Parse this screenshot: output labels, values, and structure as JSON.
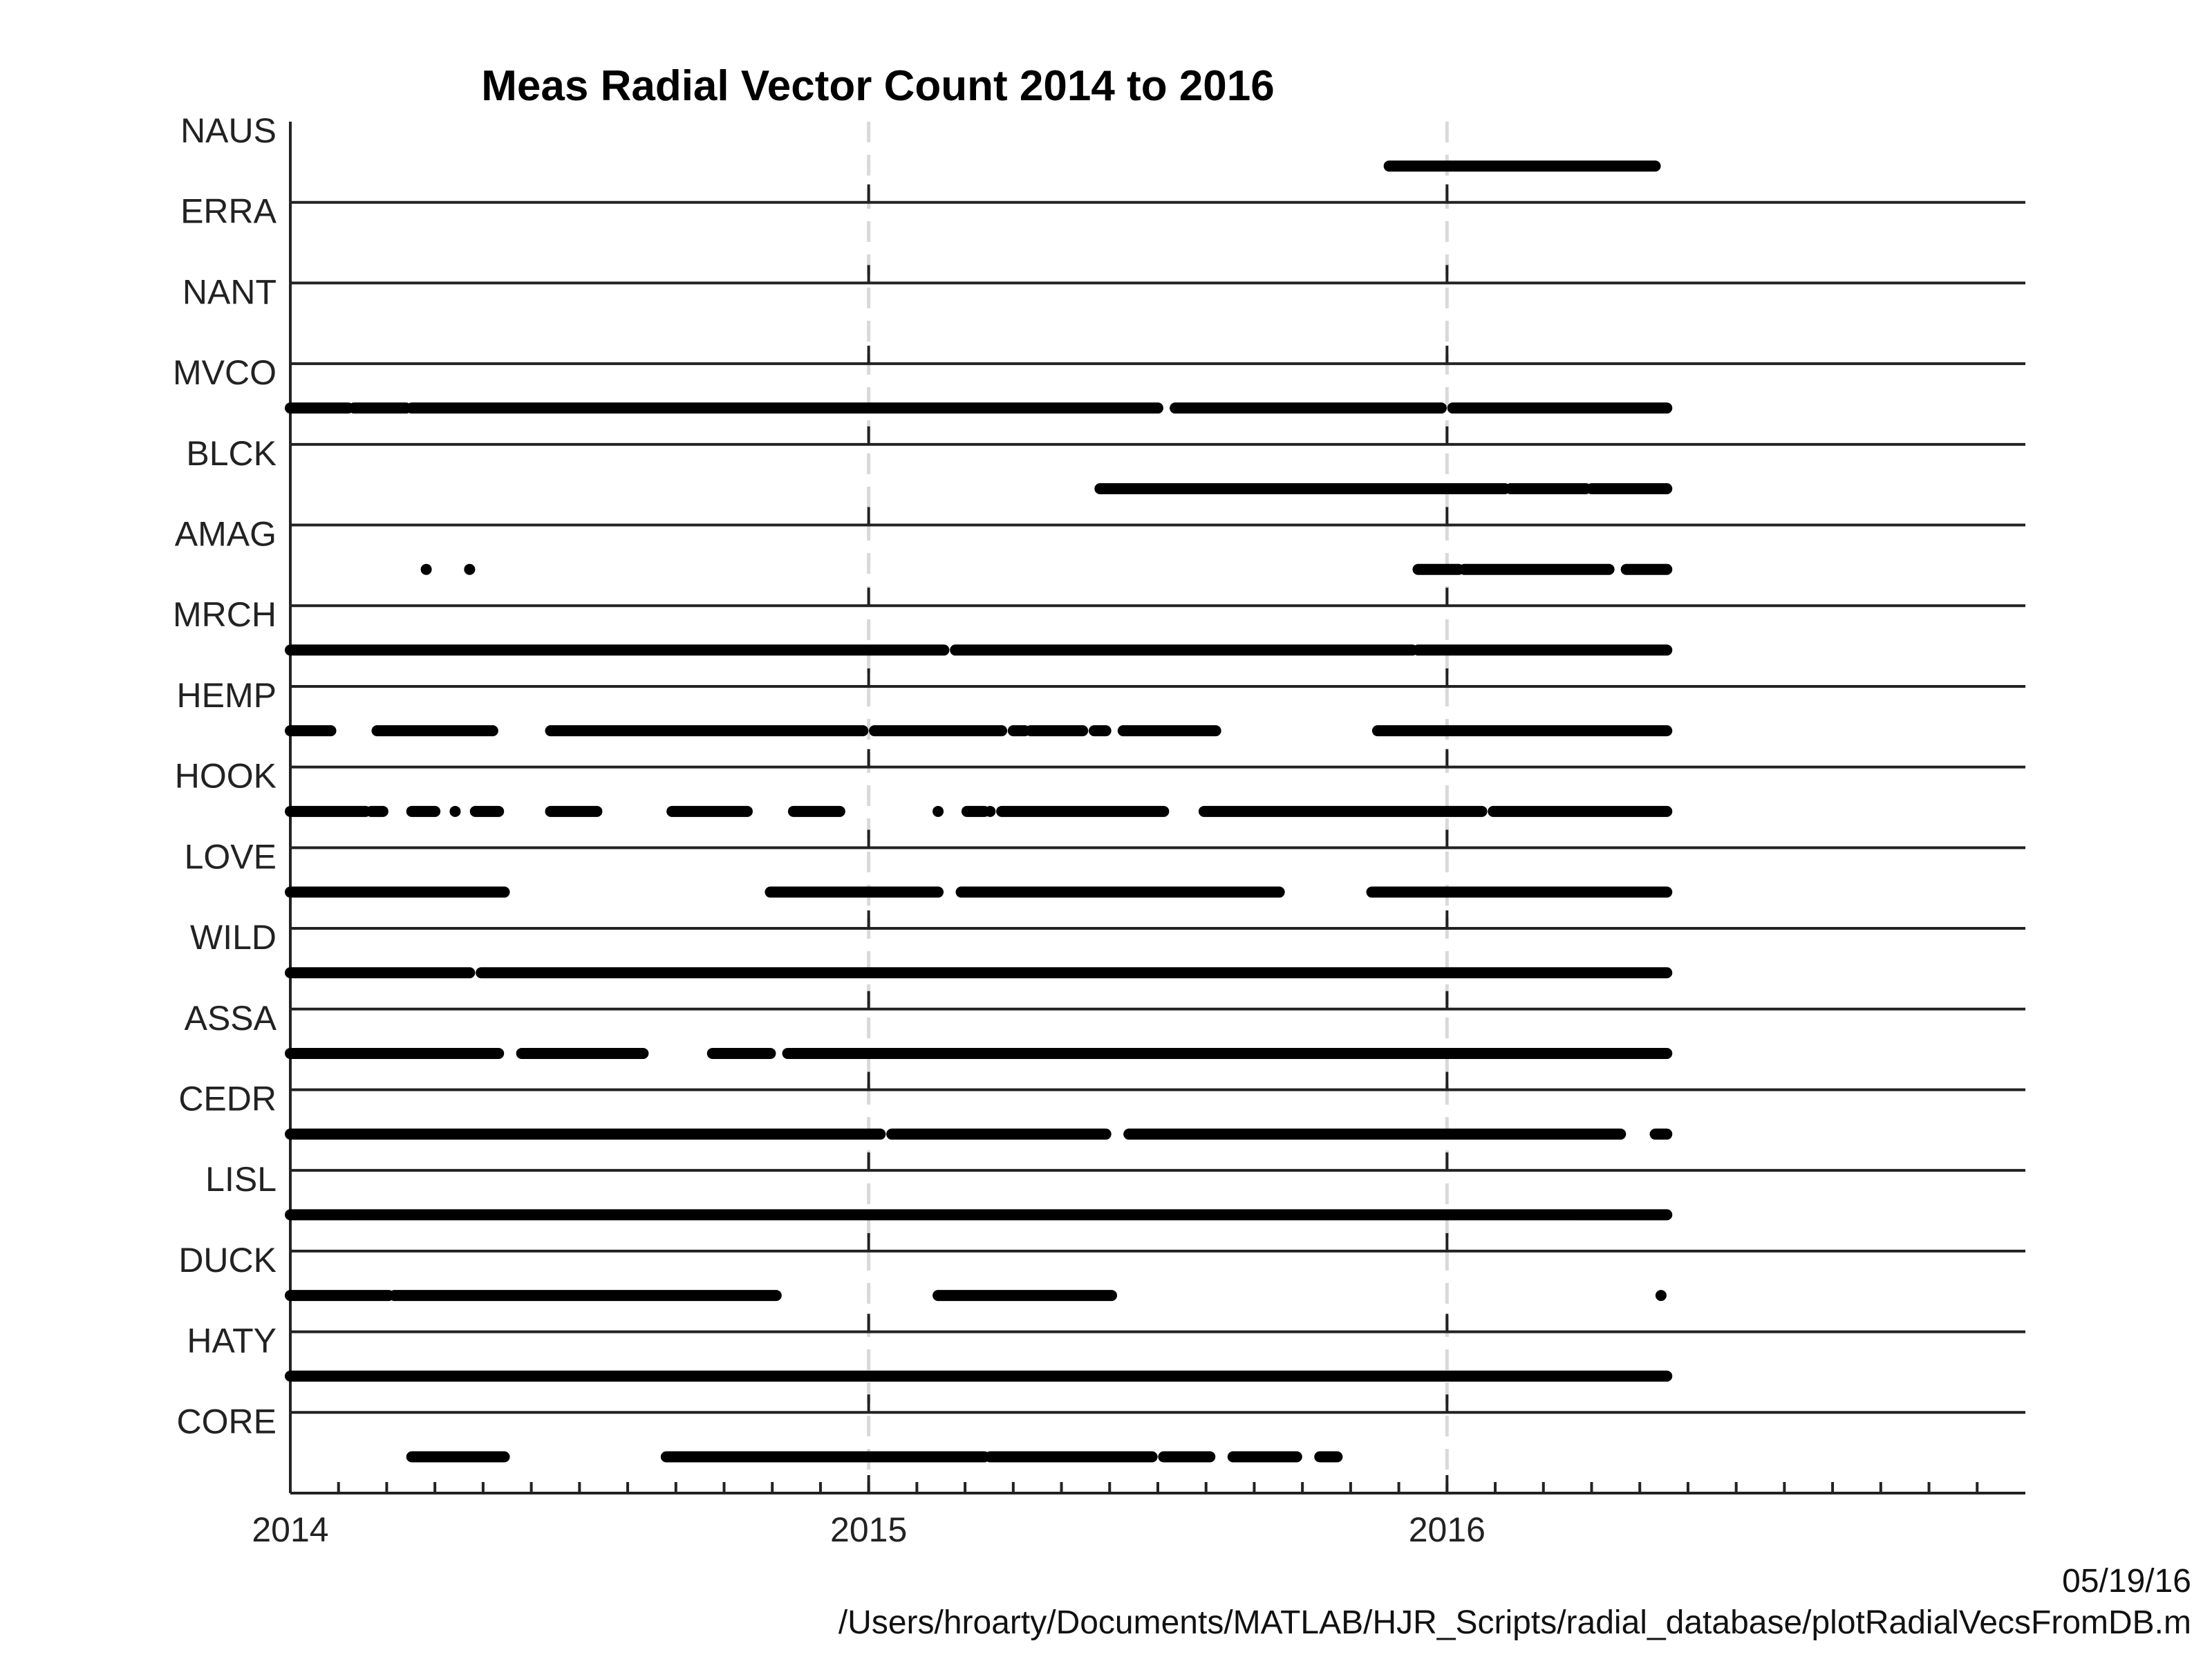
{
  "chart_data": {
    "type": "timeline",
    "title": "Meas Radial Vector Count 2014 to  2016",
    "xlim": [
      2014.0,
      2017.0
    ],
    "x_ticks": [
      2014,
      2015,
      2016
    ],
    "x_tick_labels": [
      "2014",
      "2015",
      "2016"
    ],
    "grid": "vertical dashed lines at year ticks",
    "series": [
      {
        "name": "NAUS",
        "segments": [
          [
            2015.9,
            2016.36
          ]
        ]
      },
      {
        "name": "ERRA",
        "segments": []
      },
      {
        "name": "NANT",
        "segments": []
      },
      {
        "name": "MVCO",
        "segments": [
          [
            2014.0,
            2014.1
          ],
          [
            2014.11,
            2014.2
          ],
          [
            2014.21,
            2015.5
          ],
          [
            2015.53,
            2015.99
          ],
          [
            2016.01,
            2016.38
          ]
        ]
      },
      {
        "name": "BLCK",
        "segments": [
          [
            2015.4,
            2016.1
          ],
          [
            2016.11,
            2016.24
          ],
          [
            2016.25,
            2016.38
          ]
        ]
      },
      {
        "name": "AMAG",
        "segments": [
          [
            2014.235,
            2014.235
          ],
          [
            2014.31,
            2014.31
          ],
          [
            2015.95,
            2016.02
          ],
          [
            2016.03,
            2016.28
          ],
          [
            2016.31,
            2016.38
          ]
        ]
      },
      {
        "name": "MRCH",
        "segments": [
          [
            2014.0,
            2015.13
          ],
          [
            2015.15,
            2015.94
          ],
          [
            2015.95,
            2016.38
          ]
        ]
      },
      {
        "name": "HEMP",
        "segments": [
          [
            2014.0,
            2014.07
          ],
          [
            2014.15,
            2014.35
          ],
          [
            2014.45,
            2014.99
          ],
          [
            2015.01,
            2015.23
          ],
          [
            2015.25,
            2015.27
          ],
          [
            2015.28,
            2015.37
          ],
          [
            2015.39,
            2015.41
          ],
          [
            2015.44,
            2015.6
          ],
          [
            2015.88,
            2016.38
          ]
        ]
      },
      {
        "name": "HOOK",
        "segments": [
          [
            2014.0,
            2014.13
          ],
          [
            2014.14,
            2014.16
          ],
          [
            2014.21,
            2014.25
          ],
          [
            2014.285,
            2014.285
          ],
          [
            2014.32,
            2014.36
          ],
          [
            2014.45,
            2014.53
          ],
          [
            2014.66,
            2014.79
          ],
          [
            2014.87,
            2014.95
          ],
          [
            2015.12,
            2015.12
          ],
          [
            2015.17,
            2015.2
          ],
          [
            2015.21,
            2015.21
          ],
          [
            2015.23,
            2015.51
          ],
          [
            2015.58,
            2016.06
          ],
          [
            2016.08,
            2016.38
          ]
        ]
      },
      {
        "name": "LOVE",
        "segments": [
          [
            2014.0,
            2014.37
          ],
          [
            2014.83,
            2015.12
          ],
          [
            2015.16,
            2015.71
          ],
          [
            2015.87,
            2016.38
          ]
        ]
      },
      {
        "name": "WILD",
        "segments": [
          [
            2014.0,
            2014.31
          ],
          [
            2014.33,
            2016.38
          ]
        ]
      },
      {
        "name": "ASSA",
        "segments": [
          [
            2014.0,
            2014.36
          ],
          [
            2014.4,
            2014.61
          ],
          [
            2014.73,
            2014.83
          ],
          [
            2014.86,
            2016.38
          ]
        ]
      },
      {
        "name": "CEDR",
        "segments": [
          [
            2014.0,
            2015.02
          ],
          [
            2015.04,
            2015.41
          ],
          [
            2015.45,
            2016.3
          ],
          [
            2016.36,
            2016.38
          ]
        ]
      },
      {
        "name": "LISL",
        "segments": [
          [
            2014.0,
            2016.38
          ]
        ]
      },
      {
        "name": "DUCK",
        "segments": [
          [
            2014.0,
            2014.17
          ],
          [
            2014.18,
            2014.84
          ],
          [
            2015.12,
            2015.42
          ],
          [
            2016.37,
            2016.37
          ]
        ]
      },
      {
        "name": "HATY",
        "segments": [
          [
            2014.0,
            2016.38
          ]
        ]
      },
      {
        "name": "CORE",
        "segments": [
          [
            2014.21,
            2014.37
          ],
          [
            2014.65,
            2015.2
          ],
          [
            2015.21,
            2015.49
          ],
          [
            2015.51,
            2015.59
          ],
          [
            2015.63,
            2015.74
          ],
          [
            2015.78,
            2015.81
          ]
        ]
      }
    ]
  },
  "footer": {
    "date": "05/19/16",
    "path": "/Users/hroarty/Documents/MATLAB/HJR_Scripts/radial_database/plotRadialVecsFromDB.m"
  }
}
